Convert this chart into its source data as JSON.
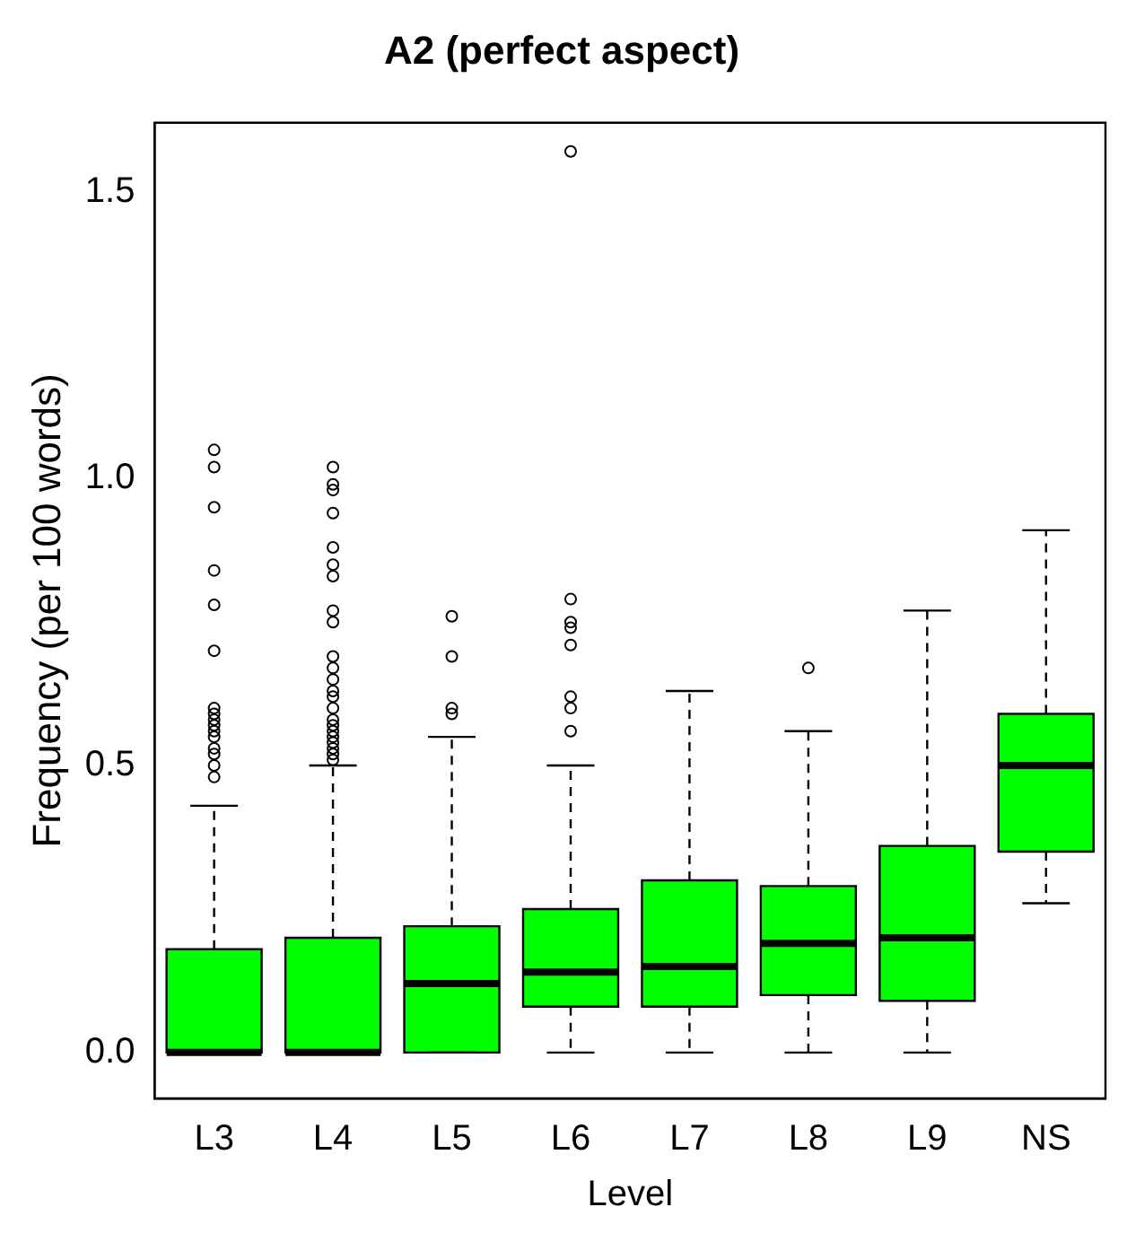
{
  "chart_data": {
    "type": "box",
    "title": "A2 (perfect aspect)",
    "xlabel": "Level",
    "ylabel": "Frequency (per 100 words)",
    "categories": [
      "L3",
      "L4",
      "L5",
      "L6",
      "L7",
      "L8",
      "L9",
      "NS"
    ],
    "color": "#00ff00",
    "boxes": [
      {
        "low": 0,
        "q1": 0,
        "median": 0,
        "q3": 0.18,
        "high": 0.43,
        "outliers": [
          1.05,
          1.02,
          0.95,
          0.84,
          0.78,
          0.7,
          0.6,
          0.59,
          0.58,
          0.57,
          0.56,
          0.55,
          0.53,
          0.52,
          0.5,
          0.48
        ]
      },
      {
        "low": 0,
        "q1": 0,
        "median": 0,
        "q3": 0.2,
        "high": 0.5,
        "outliers": [
          1.02,
          0.99,
          0.98,
          0.94,
          0.88,
          0.85,
          0.83,
          0.77,
          0.75,
          0.69,
          0.67,
          0.65,
          0.63,
          0.62,
          0.6,
          0.58,
          0.57,
          0.56,
          0.55,
          0.54,
          0.53,
          0.52,
          0.51
        ]
      },
      {
        "low": 0,
        "q1": 0,
        "median": 0.12,
        "q3": 0.22,
        "high": 0.55,
        "outliers": [
          0.76,
          0.69,
          0.6,
          0.59
        ]
      },
      {
        "low": 0,
        "q1": 0.08,
        "median": 0.14,
        "q3": 0.25,
        "high": 0.5,
        "outliers": [
          1.57,
          0.79,
          0.75,
          0.74,
          0.71,
          0.62,
          0.6,
          0.56
        ]
      },
      {
        "low": 0,
        "q1": 0.08,
        "median": 0.15,
        "q3": 0.3,
        "high": 0.63
      },
      {
        "low": 0,
        "q1": 0.1,
        "median": 0.19,
        "q3": 0.29,
        "high": 0.56,
        "outliers": [
          0.67
        ]
      },
      {
        "low": 0,
        "q1": 0.09,
        "median": 0.2,
        "q3": 0.36,
        "high": 0.77
      },
      {
        "low": 0.26,
        "q1": 0.35,
        "median": 0.5,
        "q3": 0.59,
        "high": 0.91
      }
    ],
    "ylim": [
      -0.08,
      1.62
    ],
    "yticks": [
      {
        "value": 0,
        "label": "0.0"
      },
      {
        "value": 0.5,
        "label": "0.5"
      },
      {
        "value": 1,
        "label": "1.0"
      },
      {
        "value": 1.5,
        "label": "1.5"
      }
    ],
    "grid": false,
    "legend": false,
    "marker": "circle"
  }
}
